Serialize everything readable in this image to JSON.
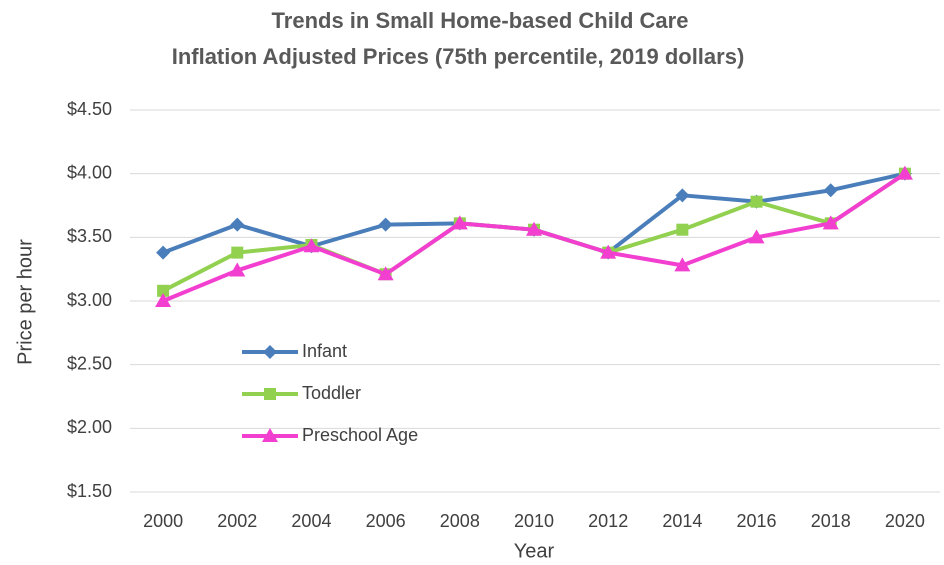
{
  "chart_data": {
    "type": "line",
    "title": [
      "Trends in Small Home-based Child Care",
      "Inflation Adjusted Prices (75th percentile, 2019 dollars)"
    ],
    "x_label": "Year",
    "y_label": "Price per hour",
    "categories": [
      "2000",
      "2002",
      "2004",
      "2006",
      "2008",
      "2010",
      "2012",
      "2014",
      "2016",
      "2018",
      "2020"
    ],
    "series": [
      {
        "name": "Infant",
        "color": "#4a7ebb",
        "marker": "diamond",
        "values": [
          3.38,
          3.6,
          3.43,
          3.6,
          3.61,
          3.56,
          3.38,
          3.83,
          3.78,
          3.87,
          4.0
        ]
      },
      {
        "name": "Toddler",
        "color": "#92d050",
        "marker": "square",
        "values": [
          3.08,
          3.38,
          3.44,
          3.21,
          3.61,
          3.56,
          3.38,
          3.56,
          3.78,
          3.61,
          4.0
        ]
      },
      {
        "name": "Preschool Age",
        "color": "#f23fd0",
        "marker": "triangle",
        "values": [
          3.0,
          3.24,
          3.43,
          3.21,
          3.61,
          3.56,
          3.38,
          3.28,
          3.5,
          3.61,
          4.0
        ]
      }
    ],
    "ylim": [
      1.5,
      4.5
    ],
    "yticks": [
      {
        "value": 1.5,
        "label": "$1.50"
      },
      {
        "value": 2,
        "label": "$2.00"
      },
      {
        "value": 2.5,
        "label": "$2.50"
      },
      {
        "value": 3,
        "label": "$3.00"
      },
      {
        "value": 3.5,
        "label": "$3.50"
      },
      {
        "value": 4,
        "label": "$4.00"
      },
      {
        "value": 4.5,
        "label": "$4.50"
      }
    ],
    "grid": true,
    "legend": "left"
  }
}
